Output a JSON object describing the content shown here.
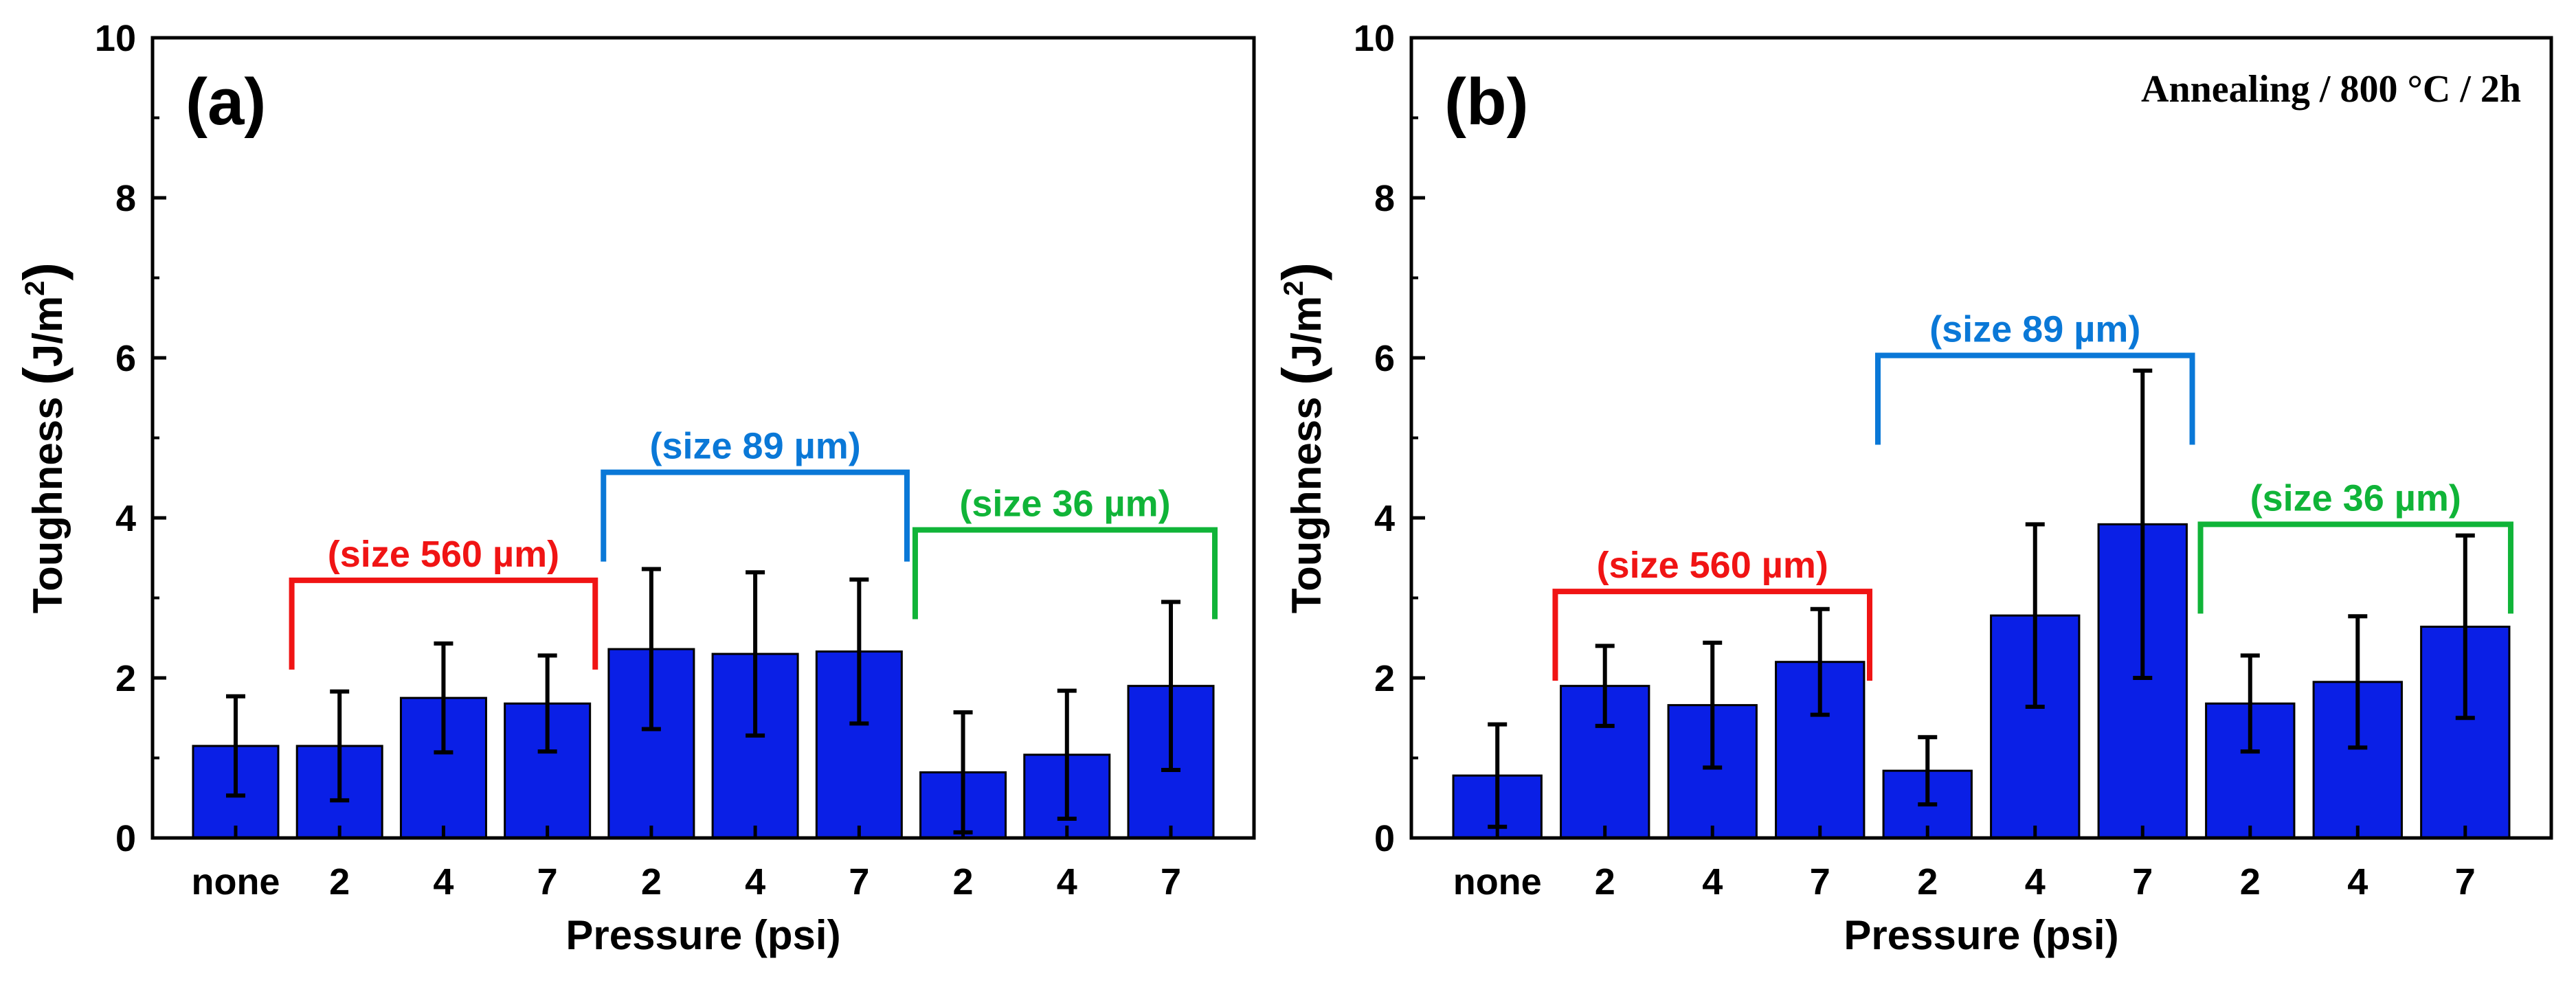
{
  "chart_data": [
    {
      "type": "bar",
      "panel_label": "(a)",
      "annotation": "",
      "categories": [
        "none",
        "2",
        "4",
        "7",
        "2",
        "4",
        "7",
        "2",
        "4",
        "7"
      ],
      "values": [
        1.15,
        1.15,
        1.75,
        1.68,
        2.36,
        2.3,
        2.33,
        0.82,
        1.04,
        1.9
      ],
      "errors": [
        0.62,
        0.68,
        0.68,
        0.6,
        1.0,
        1.02,
        0.9,
        0.75,
        0.8,
        1.05
      ],
      "bar_color": "#0a1fe6",
      "xlabel": "Pressure (psi)",
      "ylabel": "Toughness (J/m²)",
      "ylabel_main": "Toughness ",
      "ylabel_paren_open": "(",
      "ylabel_unit": "J/m",
      "ylabel_sup": "2",
      "ylabel_paren_close": ")",
      "ylim": [
        0,
        10
      ],
      "yticks": [
        "0",
        "2",
        "4",
        "6",
        "8",
        "10"
      ],
      "groups": [
        {
          "label": "(size 560 µm)",
          "from": 1,
          "to": 3,
          "level": 3.22,
          "color": "#f01414"
        },
        {
          "label": "(size 89 µm)",
          "from": 4,
          "to": 6,
          "level": 4.57,
          "color": "#0a78d7"
        },
        {
          "label": "(size 36 µm)",
          "from": 7,
          "to": 9,
          "level": 3.85,
          "color": "#10b438"
        }
      ]
    },
    {
      "type": "bar",
      "panel_label": "(b)",
      "annotation": "Annealing / 800 °C / 2h",
      "categories": [
        "none",
        "2",
        "4",
        "7",
        "2",
        "4",
        "7",
        "2",
        "4",
        "7"
      ],
      "values": [
        0.78,
        1.9,
        1.66,
        2.2,
        0.84,
        2.78,
        3.92,
        1.68,
        1.95,
        2.64
      ],
      "errors": [
        0.64,
        0.5,
        0.78,
        0.66,
        0.42,
        1.14,
        1.92,
        0.6,
        0.82,
        1.14
      ],
      "bar_color": "#0a1fe6",
      "xlabel": "Pressure (psi)",
      "ylabel": "Toughness (J/m²)",
      "ylabel_main": "Toughness ",
      "ylabel_paren_open": "(",
      "ylabel_unit": "J/m",
      "ylabel_sup": "2",
      "ylabel_paren_close": ")",
      "ylim": [
        0,
        10
      ],
      "yticks": [
        "0",
        "2",
        "4",
        "6",
        "8",
        "10"
      ],
      "groups": [
        {
          "label": "(size 560 µm)",
          "from": 1,
          "to": 3,
          "level": 3.08,
          "color": "#f01414"
        },
        {
          "label": "(size 89 µm)",
          "from": 4,
          "to": 6,
          "level": 6.03,
          "color": "#0a78d7"
        },
        {
          "label": "(size 36 µm)",
          "from": 7,
          "to": 9,
          "level": 3.92,
          "color": "#10b438"
        }
      ]
    }
  ]
}
